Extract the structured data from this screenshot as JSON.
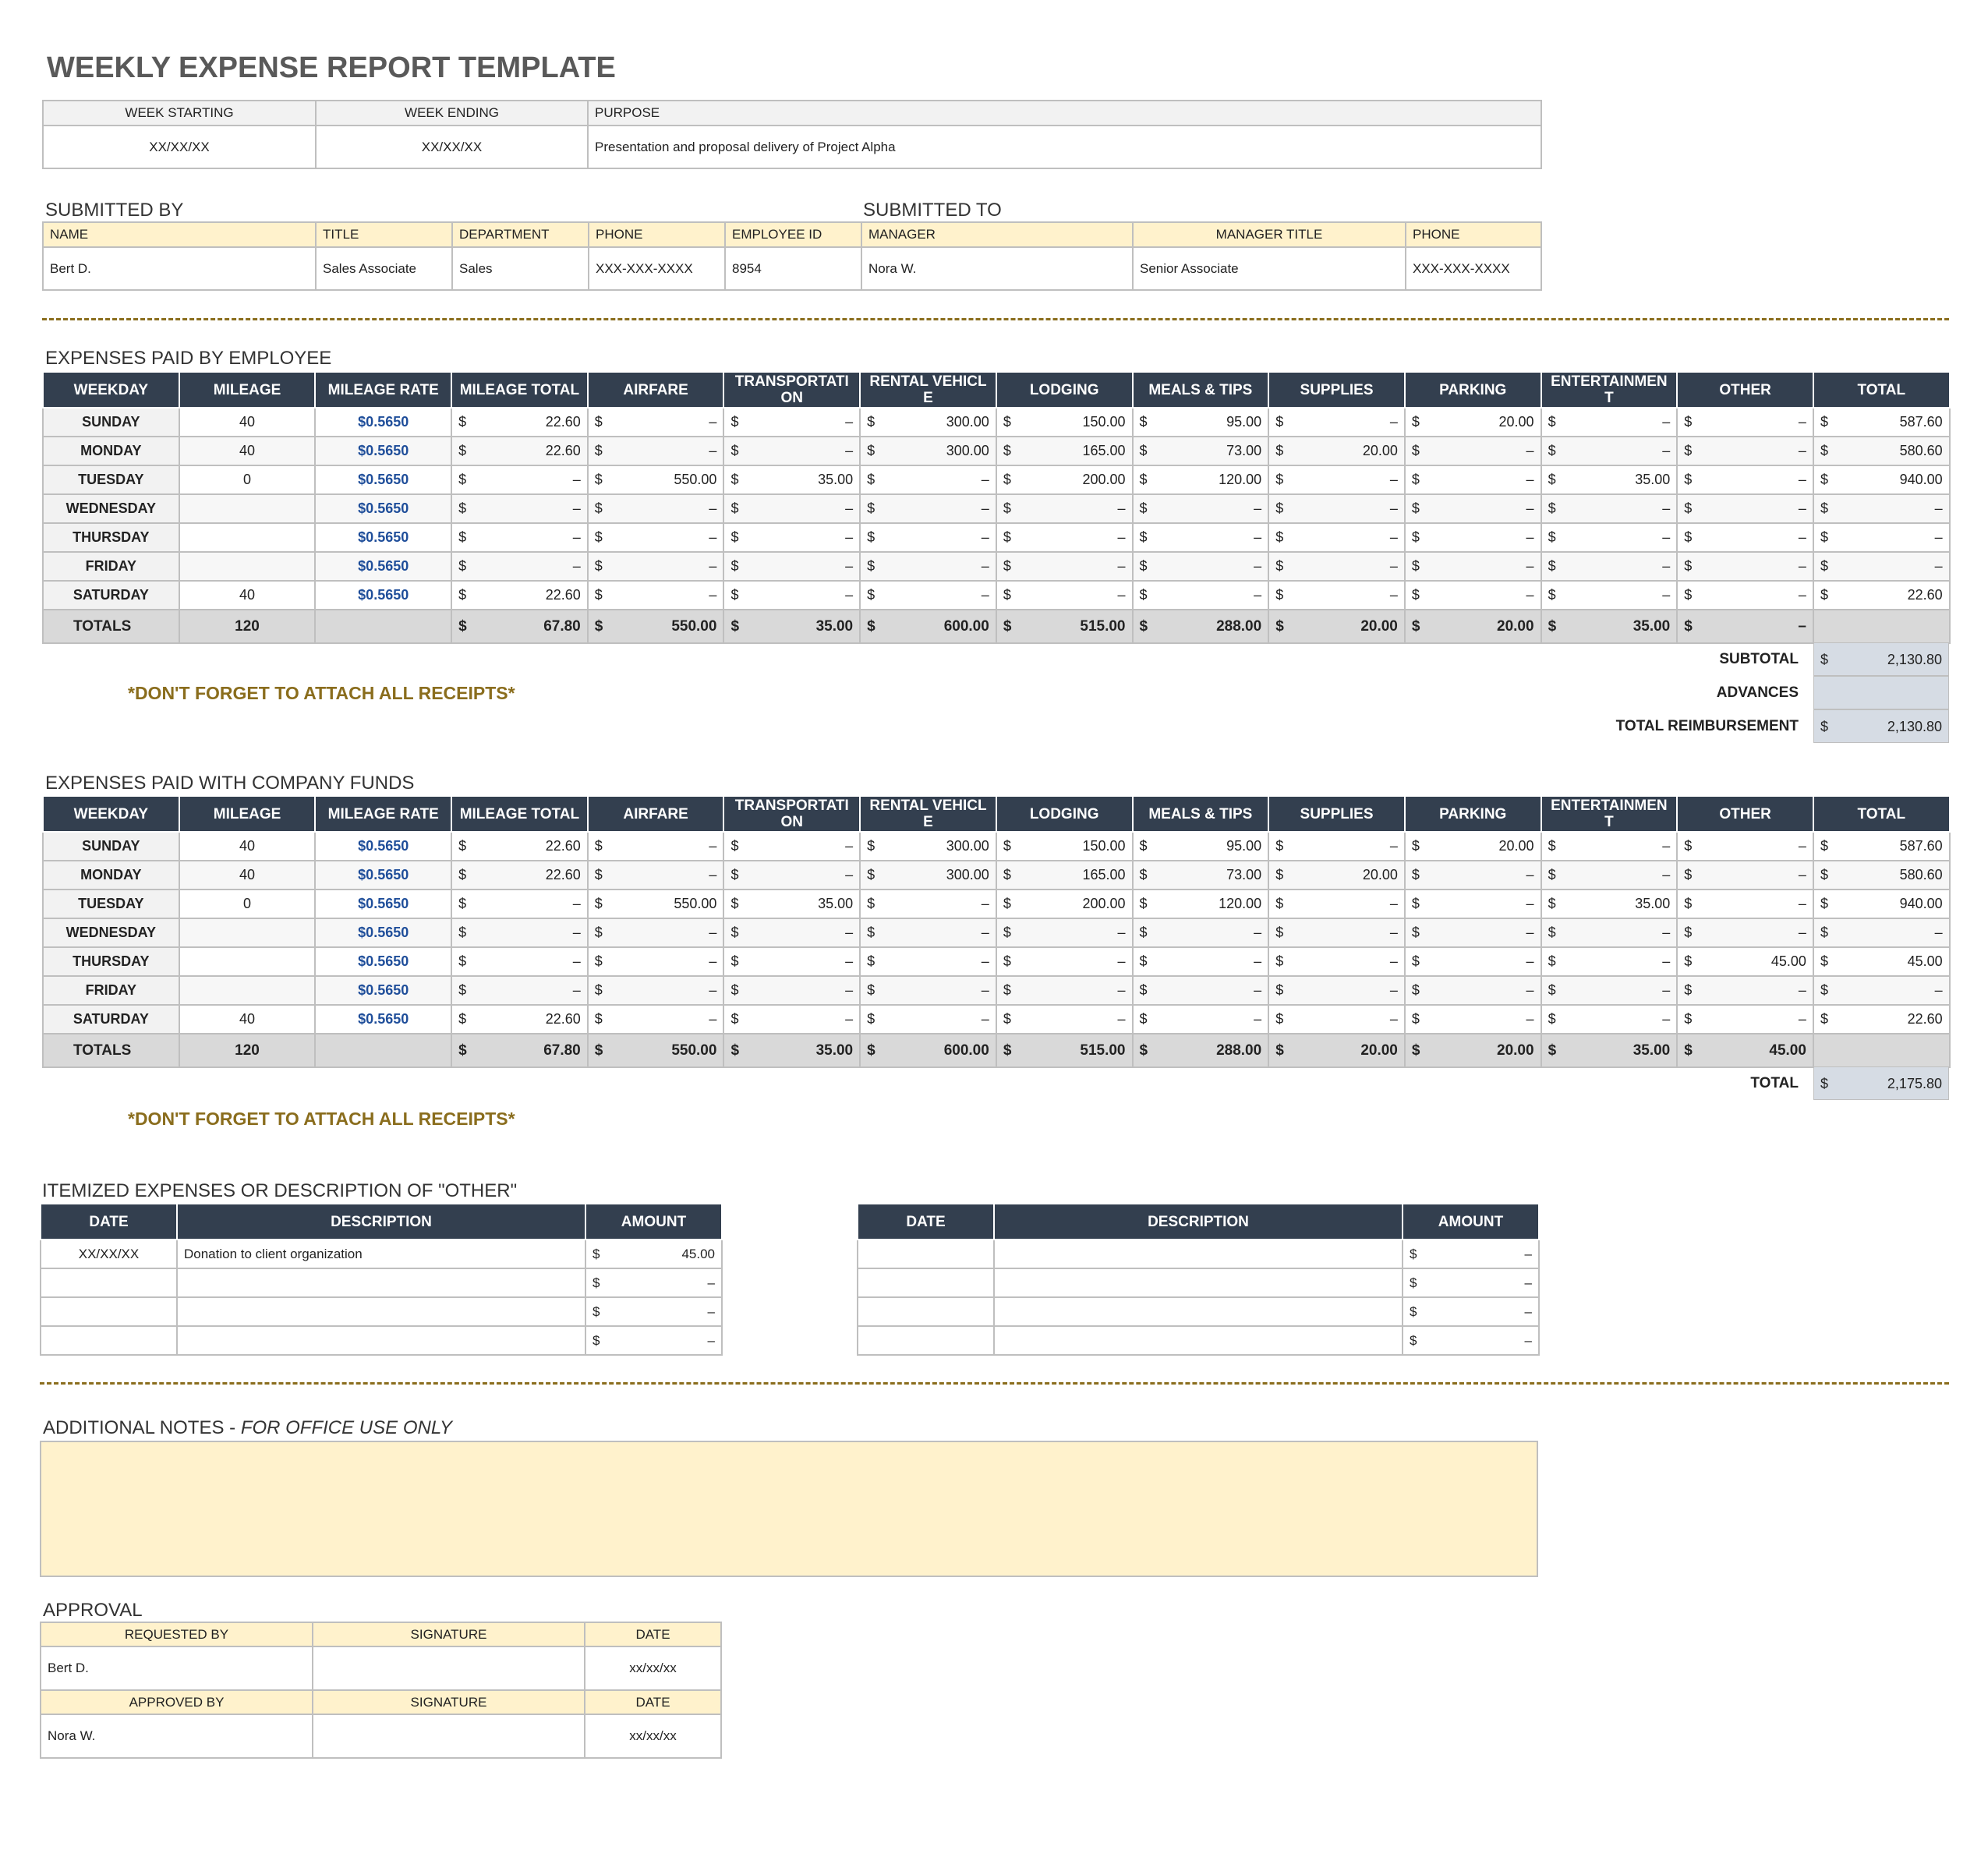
{
  "title": "WEEKLY EXPENSE REPORT TEMPLATE",
  "currency": "$",
  "trip": {
    "headers": [
      "WEEK STARTING",
      "WEEK ENDING",
      "PURPOSE"
    ],
    "values": [
      "XX/XX/XX",
      "XX/XX/XX",
      "Presentation and proposal delivery of Project Alpha"
    ]
  },
  "submitted_by": {
    "label": "SUBMITTED BY",
    "headers": [
      "NAME",
      "TITLE",
      "DEPARTMENT",
      "PHONE",
      "EMPLOYEE ID"
    ],
    "values": [
      "Bert D.",
      "Sales Associate",
      "Sales",
      "XXX-XXX-XXXX",
      "8954"
    ]
  },
  "submitted_to": {
    "label": "SUBMITTED TO",
    "headers": [
      "MANAGER",
      "MANAGER TITLE",
      "PHONE"
    ],
    "values": [
      "Nora W.",
      "Senior Associate",
      "XXX-XXX-XXXX"
    ]
  },
  "employee_expenses": {
    "label": "EXPENSES PAID BY EMPLOYEE",
    "headers": [
      "WEEKDAY",
      "MILEAGE",
      "MILEAGE RATE",
      "MILEAGE TOTAL",
      "AIRFARE",
      "TRANSPORTATION",
      "RENTAL VEHICLE",
      "LODGING",
      "MEALS & TIPS",
      "SUPPLIES",
      "PARKING",
      "ENTERTAINMENT",
      "OTHER",
      "TOTAL"
    ],
    "rows": [
      [
        "SUNDAY",
        "40",
        "$0.5650",
        "22.60",
        "–",
        "–",
        "300.00",
        "150.00",
        "95.00",
        "–",
        "20.00",
        "–",
        "–",
        "587.60"
      ],
      [
        "MONDAY",
        "40",
        "$0.5650",
        "22.60",
        "–",
        "–",
        "300.00",
        "165.00",
        "73.00",
        "20.00",
        "–",
        "–",
        "–",
        "580.60"
      ],
      [
        "TUESDAY",
        "0",
        "$0.5650",
        "–",
        "550.00",
        "35.00",
        "–",
        "200.00",
        "120.00",
        "–",
        "–",
        "35.00",
        "–",
        "940.00"
      ],
      [
        "WEDNESDAY",
        null,
        "$0.5650",
        "–",
        "–",
        "–",
        "–",
        "–",
        "–",
        "–",
        "–",
        "–",
        "–",
        "–"
      ],
      [
        "THURSDAY",
        null,
        "$0.5650",
        "–",
        "–",
        "–",
        "–",
        "–",
        "–",
        "–",
        "–",
        "–",
        "–",
        "–"
      ],
      [
        "FRIDAY",
        null,
        "$0.5650",
        "–",
        "–",
        "–",
        "–",
        "–",
        "–",
        "–",
        "–",
        "–",
        "–",
        "–"
      ],
      [
        "SATURDAY",
        "40",
        "$0.5650",
        "22.60",
        "–",
        "–",
        "–",
        "–",
        "–",
        "–",
        "–",
        "–",
        "–",
        "22.60"
      ]
    ],
    "totals": [
      "TOTALS",
      "120",
      null,
      "67.80",
      "550.00",
      "35.00",
      "600.00",
      "515.00",
      "288.00",
      "20.00",
      "20.00",
      "35.00",
      "–",
      null
    ],
    "summary": [
      {
        "label": "SUBTOTAL",
        "value": "2,130.80"
      },
      {
        "label": "ADVANCES",
        "value": null
      },
      {
        "label": "TOTAL REIMBURSEMENT",
        "value": "2,130.80"
      }
    ],
    "reminder": "*DON'T FORGET TO ATTACH ALL RECEIPTS*"
  },
  "company_expenses": {
    "label": "EXPENSES PAID WITH COMPANY FUNDS",
    "headers": [
      "WEEKDAY",
      "MILEAGE",
      "MILEAGE RATE",
      "MILEAGE TOTAL",
      "AIRFARE",
      "TRANSPORTATION",
      "RENTAL VEHICLE",
      "LODGING",
      "MEALS & TIPS",
      "SUPPLIES",
      "PARKING",
      "ENTERTAINMENT",
      "OTHER",
      "TOTAL"
    ],
    "rows": [
      [
        "SUNDAY",
        "40",
        "$0.5650",
        "22.60",
        "–",
        "–",
        "300.00",
        "150.00",
        "95.00",
        "–",
        "20.00",
        "–",
        "–",
        "587.60"
      ],
      [
        "MONDAY",
        "40",
        "$0.5650",
        "22.60",
        "–",
        "–",
        "300.00",
        "165.00",
        "73.00",
        "20.00",
        "–",
        "–",
        "–",
        "580.60"
      ],
      [
        "TUESDAY",
        "0",
        "$0.5650",
        "–",
        "550.00",
        "35.00",
        "–",
        "200.00",
        "120.00",
        "–",
        "–",
        "35.00",
        "–",
        "940.00"
      ],
      [
        "WEDNESDAY",
        null,
        "$0.5650",
        "–",
        "–",
        "–",
        "–",
        "–",
        "–",
        "–",
        "–",
        "–",
        "–",
        "–"
      ],
      [
        "THURSDAY",
        null,
        "$0.5650",
        "–",
        "–",
        "–",
        "–",
        "–",
        "–",
        "–",
        "–",
        "–",
        "45.00",
        "45.00"
      ],
      [
        "FRIDAY",
        null,
        "$0.5650",
        "–",
        "–",
        "–",
        "–",
        "–",
        "–",
        "–",
        "–",
        "–",
        "–",
        "–"
      ],
      [
        "SATURDAY",
        "40",
        "$0.5650",
        "22.60",
        "–",
        "–",
        "–",
        "–",
        "–",
        "–",
        "–",
        "–",
        "–",
        "22.60"
      ]
    ],
    "totals": [
      "TOTALS",
      "120",
      null,
      "67.80",
      "550.00",
      "35.00",
      "600.00",
      "515.00",
      "288.00",
      "20.00",
      "20.00",
      "35.00",
      "45.00",
      null
    ],
    "summary": [
      {
        "label": "TOTAL",
        "value": "2,175.80"
      }
    ],
    "reminder": "*DON'T FORGET TO ATTACH ALL RECEIPTS*"
  },
  "itemized": {
    "label": "ITEMIZED EXPENSES OR DESCRIPTION OF \"OTHER\"",
    "tables": [
      {
        "headers": [
          "DATE",
          "DESCRIPTION",
          "AMOUNT"
        ],
        "rows": [
          [
            "XX/XX/XX",
            "Donation to client organization",
            "45.00"
          ],
          [
            null,
            null,
            "–"
          ],
          [
            null,
            null,
            "–"
          ],
          [
            null,
            null,
            "–"
          ]
        ]
      },
      {
        "headers": [
          "DATE",
          "DESCRIPTION",
          "AMOUNT"
        ],
        "rows": [
          [
            null,
            null,
            "–"
          ],
          [
            null,
            null,
            "–"
          ],
          [
            null,
            null,
            "–"
          ],
          [
            null,
            null,
            "–"
          ]
        ]
      }
    ]
  },
  "notes": {
    "label": "ADDITIONAL NOTES - ",
    "label_italic": "FOR OFFICE USE ONLY"
  },
  "approval": {
    "label": "APPROVAL",
    "rows": [
      [
        "REQUESTED BY",
        "SIGNATURE",
        "DATE"
      ],
      [
        "Bert D.",
        null,
        "xx/xx/xx"
      ],
      [
        "APPROVED BY",
        "SIGNATURE",
        "DATE"
      ],
      [
        "Nora W.",
        null,
        "xx/xx/xx"
      ]
    ]
  }
}
